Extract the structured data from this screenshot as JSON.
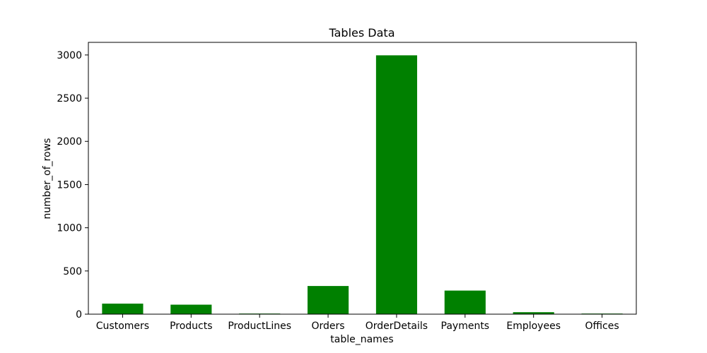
{
  "chart_data": {
    "type": "bar",
    "title": "Tables Data",
    "xlabel": "table_names",
    "ylabel": "number_of_rows",
    "categories": [
      "Customers",
      "Products",
      "ProductLines",
      "Orders",
      "OrderDetails",
      "Payments",
      "Employees",
      "Offices"
    ],
    "values": [
      122,
      110,
      7,
      326,
      2996,
      273,
      23,
      7
    ],
    "ylim": [
      0,
      3146
    ],
    "yticks": [
      0,
      500,
      1000,
      1500,
      2000,
      2500,
      3000
    ],
    "bar_color": "#008000",
    "grid": false,
    "legend": "none"
  }
}
